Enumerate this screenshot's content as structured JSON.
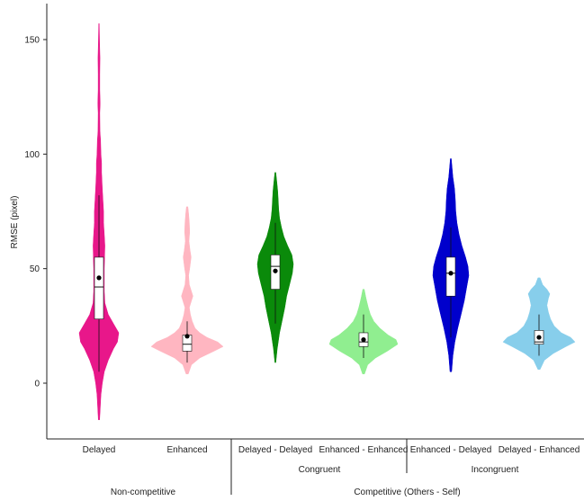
{
  "chart_data": {
    "type": "violin",
    "ylabel": "RMSE (pixel)",
    "ylim": [
      -24,
      166
    ],
    "yticks": [
      0,
      50,
      100,
      150
    ],
    "grid": false,
    "legend": "none",
    "categories": [
      "Delayed",
      "Enhanced",
      "Delayed - Delayed",
      "Enhanced - Enhanced",
      "Enhanced - Delayed",
      "Delayed - Enhanced"
    ],
    "groups": [
      {
        "label": "Congruent",
        "members": [
          2,
          3
        ]
      },
      {
        "label": "Incongruent",
        "members": [
          4,
          5
        ]
      }
    ],
    "supergroups": [
      {
        "label": "Non-competitive",
        "members": [
          0,
          1
        ]
      },
      {
        "label": "Competitive (Others - Self)",
        "members": [
          2,
          3,
          4,
          5
        ]
      }
    ],
    "series": [
      {
        "category": "Delayed",
        "color": "#E8178A",
        "box": {
          "q1": 28,
          "median": 42,
          "q3": 55,
          "whisker_low": 5,
          "whisker_high": 82,
          "mean": 46
        },
        "density": [
          [
            -16,
            0.01
          ],
          [
            -5,
            0.03
          ],
          [
            0,
            0.05
          ],
          [
            5,
            0.08
          ],
          [
            10,
            0.14
          ],
          [
            15,
            0.22
          ],
          [
            18,
            0.28
          ],
          [
            22,
            0.3
          ],
          [
            26,
            0.22
          ],
          [
            30,
            0.14
          ],
          [
            35,
            0.09
          ],
          [
            40,
            0.08
          ],
          [
            50,
            0.08
          ],
          [
            60,
            0.09
          ],
          [
            65,
            0.08
          ],
          [
            70,
            0.07
          ],
          [
            75,
            0.07
          ],
          [
            80,
            0.06
          ],
          [
            85,
            0.05
          ],
          [
            92,
            0.04
          ],
          [
            96,
            0.04
          ],
          [
            100,
            0.03
          ],
          [
            106,
            0.025
          ],
          [
            110,
            0.015
          ],
          [
            118,
            0.012
          ],
          [
            122,
            0.018
          ],
          [
            128,
            0.012
          ],
          [
            135,
            0.012
          ],
          [
            142,
            0.015
          ],
          [
            150,
            0.008
          ],
          [
            157,
            0.004
          ]
        ]
      },
      {
        "category": "Enhanced",
        "color": "#FFB6C1",
        "box": {
          "q1": 14,
          "median": 17,
          "q3": 21,
          "whisker_low": 9,
          "whisker_high": 27,
          "mean": 20.5
        },
        "density": [
          [
            4,
            0.03
          ],
          [
            8,
            0.12
          ],
          [
            11,
            0.35
          ],
          [
            14,
            0.75
          ],
          [
            16,
            1.0
          ],
          [
            18,
            0.85
          ],
          [
            20,
            0.55
          ],
          [
            22,
            0.35
          ],
          [
            24,
            0.22
          ],
          [
            27,
            0.14
          ],
          [
            30,
            0.09
          ],
          [
            33,
            0.06
          ],
          [
            36,
            0.12
          ],
          [
            38,
            0.16
          ],
          [
            40,
            0.12
          ],
          [
            43,
            0.06
          ],
          [
            47,
            0.04
          ],
          [
            50,
            0.07
          ],
          [
            55,
            0.11
          ],
          [
            58,
            0.08
          ],
          [
            62,
            0.05
          ],
          [
            66,
            0.07
          ],
          [
            70,
            0.06
          ],
          [
            74,
            0.04
          ],
          [
            77,
            0.02
          ]
        ]
      },
      {
        "category": "Delayed - Delayed",
        "color": "#0A8A0A",
        "box": {
          "q1": 41,
          "median": 51,
          "q3": 56,
          "whisker_low": 26,
          "whisker_high": 70,
          "mean": 49
        },
        "density": [
          [
            9,
            0.01
          ],
          [
            15,
            0.04
          ],
          [
            22,
            0.09
          ],
          [
            28,
            0.15
          ],
          [
            33,
            0.2
          ],
          [
            38,
            0.24
          ],
          [
            43,
            0.3
          ],
          [
            48,
            0.36
          ],
          [
            52,
            0.38
          ],
          [
            56,
            0.35
          ],
          [
            60,
            0.26
          ],
          [
            64,
            0.18
          ],
          [
            68,
            0.13
          ],
          [
            72,
            0.09
          ],
          [
            76,
            0.07
          ],
          [
            80,
            0.06
          ],
          [
            84,
            0.05
          ],
          [
            88,
            0.03
          ],
          [
            92,
            0.01
          ]
        ]
      },
      {
        "category": "Enhanced - Enhanced",
        "color": "#90EE90",
        "box": {
          "q1": 16,
          "median": 18,
          "q3": 22,
          "whisker_low": 11,
          "whisker_high": 30,
          "mean": 19
        },
        "density": [
          [
            4,
            0.03
          ],
          [
            8,
            0.12
          ],
          [
            11,
            0.35
          ],
          [
            14,
            0.7
          ],
          [
            17,
            1.0
          ],
          [
            19,
            0.95
          ],
          [
            21,
            0.72
          ],
          [
            24,
            0.48
          ],
          [
            27,
            0.3
          ],
          [
            30,
            0.2
          ],
          [
            33,
            0.14
          ],
          [
            36,
            0.09
          ],
          [
            38,
            0.06
          ],
          [
            41,
            0.02
          ]
        ]
      },
      {
        "category": "Enhanced - Delayed",
        "color": "#0000CC",
        "box": {
          "q1": 38,
          "median": 48,
          "q3": 55,
          "whisker_low": 20,
          "whisker_high": 68,
          "mean": 48
        },
        "density": [
          [
            5,
            0.02
          ],
          [
            12,
            0.05
          ],
          [
            18,
            0.1
          ],
          [
            24,
            0.17
          ],
          [
            30,
            0.25
          ],
          [
            36,
            0.33
          ],
          [
            42,
            0.39
          ],
          [
            47,
            0.44
          ],
          [
            51,
            0.42
          ],
          [
            55,
            0.36
          ],
          [
            60,
            0.27
          ],
          [
            65,
            0.2
          ],
          [
            70,
            0.15
          ],
          [
            75,
            0.12
          ],
          [
            80,
            0.11
          ],
          [
            85,
            0.09
          ],
          [
            90,
            0.05
          ],
          [
            94,
            0.03
          ],
          [
            98,
            0.01
          ]
        ]
      },
      {
        "category": "Delayed - Enhanced",
        "color": "#87CEEB",
        "box": {
          "q1": 17,
          "median": 18,
          "q3": 23,
          "whisker_low": 12,
          "whisker_high": 30,
          "mean": 20
        },
        "density": [
          [
            6,
            0.03
          ],
          [
            10,
            0.15
          ],
          [
            13,
            0.4
          ],
          [
            16,
            0.75
          ],
          [
            18,
            1.0
          ],
          [
            20,
            0.88
          ],
          [
            22,
            0.62
          ],
          [
            25,
            0.42
          ],
          [
            28,
            0.32
          ],
          [
            31,
            0.26
          ],
          [
            34,
            0.22
          ],
          [
            37,
            0.26
          ],
          [
            39,
            0.3
          ],
          [
            41,
            0.22
          ],
          [
            43,
            0.1
          ],
          [
            46,
            0.03
          ]
        ]
      }
    ]
  }
}
